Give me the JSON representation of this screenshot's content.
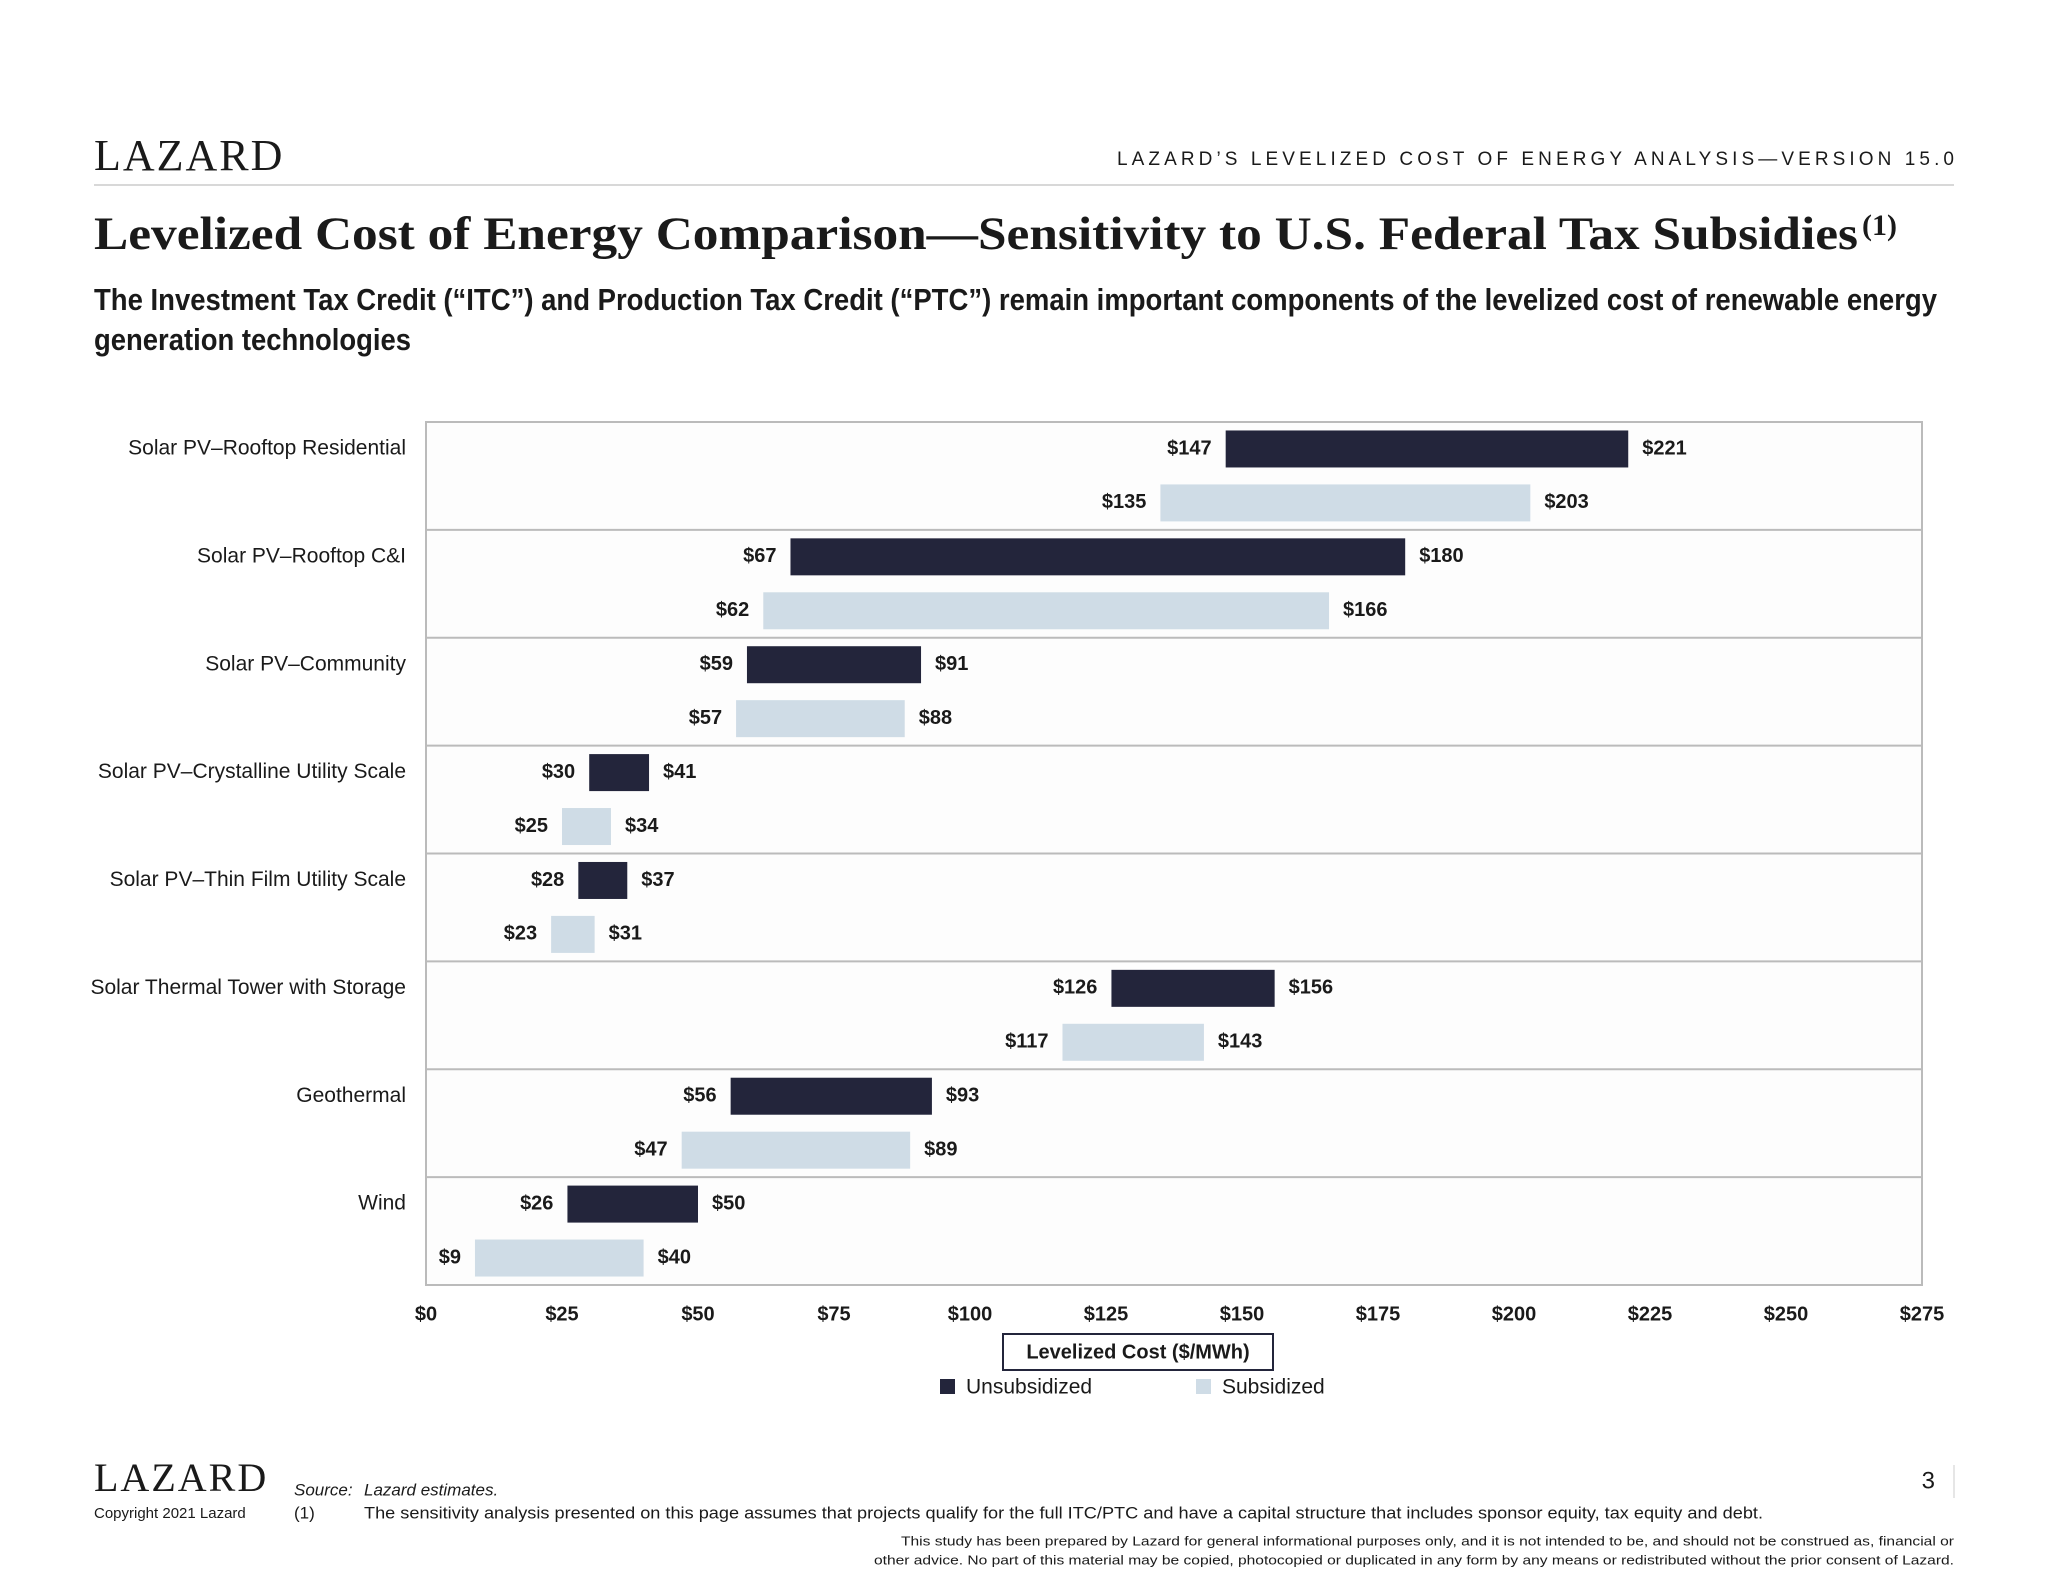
{
  "header": {
    "logo": "LAZARD",
    "report": "LAZARD’S LEVELIZED COST OF ENERGY ANALYSIS—VERSION 15.0"
  },
  "title": "Levelized Cost of Energy Comparison—Sensitivity to U.S. Federal Tax Subsidies",
  "title_note": "(1)",
  "subtitle": [
    "The Investment Tax Credit (“ITC”) and Production Tax Credit (“PTC”) remain important components of the levelized cost of renewable energy",
    "generation technologies"
  ],
  "chart_data": {
    "type": "bar",
    "orientation": "horizontal",
    "categories": [
      "Solar PV–Rooftop Residential",
      "Solar PV–Rooftop C&I",
      "Solar PV–Community",
      "Solar PV–Crystalline Utility Scale",
      "Solar PV–Thin Film Utility Scale",
      "Solar Thermal Tower with Storage",
      "Geothermal",
      "Wind"
    ],
    "series": [
      {
        "name": "Unsubsidized",
        "color": "#23253b",
        "values": [
          [
            147,
            221
          ],
          [
            67,
            180
          ],
          [
            59,
            91
          ],
          [
            30,
            41
          ],
          [
            28,
            37
          ],
          [
            126,
            156
          ],
          [
            56,
            93
          ],
          [
            26,
            50
          ]
        ],
        "value_labels": [
          [
            "$147",
            "$221"
          ],
          [
            "$67",
            "$180"
          ],
          [
            "$59",
            "$91"
          ],
          [
            "$30",
            "$41"
          ],
          [
            "$28",
            "$37"
          ],
          [
            "$126",
            "$156"
          ],
          [
            "$56",
            "$93"
          ],
          [
            "$26",
            "$50"
          ]
        ]
      },
      {
        "name": "Subsidized",
        "color": "#cfdce6",
        "values": [
          [
            135,
            203
          ],
          [
            62,
            166
          ],
          [
            57,
            88
          ],
          [
            25,
            34
          ],
          [
            23,
            31
          ],
          [
            117,
            143
          ],
          [
            47,
            89
          ],
          [
            9,
            40
          ]
        ],
        "value_labels": [
          [
            "$135",
            "$203"
          ],
          [
            "$62",
            "$166"
          ],
          [
            "$57",
            "$88"
          ],
          [
            "$25",
            "$34"
          ],
          [
            "$23",
            "$31"
          ],
          [
            "$117",
            "$143"
          ],
          [
            "$47",
            "$89"
          ],
          [
            "$9",
            "$40"
          ]
        ]
      }
    ],
    "xlabel": "Levelized Cost ($/MWh)",
    "xlim": [
      0,
      275
    ],
    "xticks": [
      {
        "value": 0,
        "label": "$0"
      },
      {
        "value": 25,
        "label": "$25"
      },
      {
        "value": 50,
        "label": "$50"
      },
      {
        "value": 75,
        "label": "$75"
      },
      {
        "value": 100,
        "label": "$100"
      },
      {
        "value": 125,
        "label": "$125"
      },
      {
        "value": 150,
        "label": "$150"
      },
      {
        "value": 175,
        "label": "$175"
      },
      {
        "value": 200,
        "label": "$200"
      },
      {
        "value": 225,
        "label": "$225"
      },
      {
        "value": 250,
        "label": "$250"
      },
      {
        "value": 275,
        "label": "$275"
      }
    ]
  },
  "footer": {
    "logo": "LAZARD",
    "copyright": "Copyright 2021 Lazard",
    "source_label": "Source:",
    "source": "Lazard estimates.",
    "note_marker": "(1)",
    "note": "The sensitivity analysis presented on this page assumes that projects qualify for the full ITC/PTC and have a capital structure that includes sponsor equity, tax equity and debt.",
    "page": "3",
    "disclaimer": [
      "This study has been prepared by Lazard for general informational purposes only, and it is not intended to be, and should not be construed as, financial or",
      "other advice. No part of this material may be copied, photocopied or duplicated in any form by any means or redistributed without the prior consent of Lazard."
    ]
  }
}
